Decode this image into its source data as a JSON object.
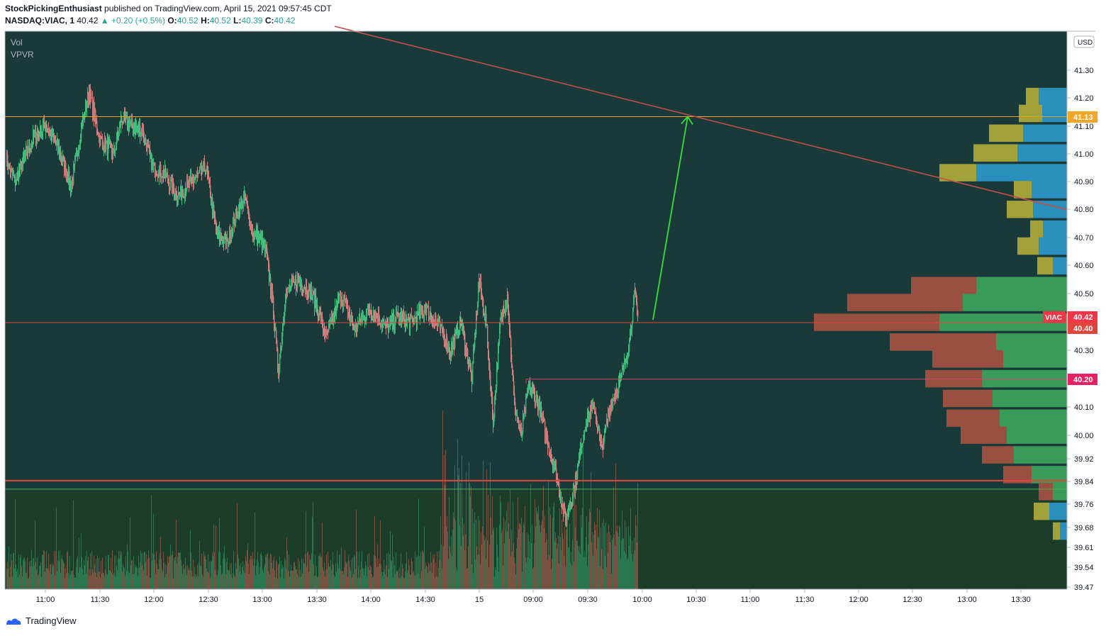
{
  "header": {
    "author": "StockPickingEnthusiast",
    "published": "published on TradingView.com, April 15, 2021 09:57:45 CDT",
    "symbol": "NASDAQ:VIAC, 1",
    "last": "40.42",
    "change": "▲ +0.20 (+0.5%)",
    "o_label": "O:",
    "o_value": "40.52",
    "h_label": "H:",
    "h_value": "40.52",
    "l_label": "L:",
    "l_value": "40.39",
    "c_label": "C:",
    "c_value": "40.42"
  },
  "indicators": [
    "Vol",
    "VPVR"
  ],
  "footer": {
    "brand": "TradingView"
  },
  "colors": {
    "background": "#1a3a3a",
    "volume_zone": "#1b3d2a",
    "candle_up": "#3cb878",
    "candle_down": "#d08080",
    "horizontal_resistance": "#f5a623",
    "support_lines": "#e0443a",
    "trend_line": "#c0504d",
    "arrow": "#38e03a"
  },
  "chart_data": {
    "type": "candlestick",
    "currency": "USD",
    "y_ticks": [
      41.3,
      41.2,
      41.1,
      41.0,
      40.9,
      40.8,
      40.7,
      40.6,
      40.5,
      40.3,
      40.1,
      40.0,
      39.92,
      39.84,
      39.76,
      39.68,
      39.61,
      39.54,
      39.47
    ],
    "x_ticks": [
      "11:00",
      "11:30",
      "12:00",
      "12:30",
      "13:00",
      "13:30",
      "14:00",
      "14:30",
      "15",
      "09:00",
      "09:30",
      "10:00",
      "10:30",
      "11:00",
      "11:30",
      "12:00",
      "12:30",
      "13:00",
      "13:30"
    ],
    "price_tags": [
      {
        "label": "41.13",
        "value": 41.13,
        "color": "#f5a623"
      },
      {
        "label": "40.42",
        "value": 40.42,
        "color": "#f23645",
        "name": "VIAC"
      },
      {
        "label": "40.40",
        "value": 40.4,
        "color": "#e0443a"
      },
      {
        "label": "40.20",
        "value": 40.2,
        "color": "#e91e63"
      }
    ],
    "horizontal_lines": [
      {
        "value": 41.13,
        "color": "#f5a623"
      },
      {
        "value": 40.4,
        "color": "#e0443a"
      },
      {
        "value": 39.84,
        "color": "#e0443a"
      },
      {
        "value": 39.81,
        "color": "#4caf50"
      }
    ],
    "trend_line": {
      "from": {
        "x": "10:40",
        "y": 41.45
      },
      "to": {
        "x": "13:55",
        "y": 40.8
      }
    },
    "arrow": {
      "from": {
        "x": "10:01",
        "y": 40.41
      },
      "to": {
        "x": "10:26",
        "y": 41.13
      }
    },
    "vpvr": [
      {
        "price": 41.2,
        "up": 40,
        "down": 58
      },
      {
        "price": 41.14,
        "up": 35,
        "down": 68
      },
      {
        "price": 41.07,
        "up": 62,
        "down": 110
      },
      {
        "price": 41.0,
        "up": 70,
        "down": 132
      },
      {
        "price": 40.93,
        "up": 128,
        "down": 180
      },
      {
        "price": 40.87,
        "up": 50,
        "down": 75
      },
      {
        "price": 40.8,
        "up": 48,
        "down": 85
      },
      {
        "price": 40.73,
        "up": 34,
        "down": 52
      },
      {
        "price": 40.67,
        "up": 40,
        "down": 70
      },
      {
        "price": 40.6,
        "up": 20,
        "down": 42
      },
      {
        "price": 40.53,
        "up": 128,
        "down": 220
      },
      {
        "price": 40.47,
        "up": 147,
        "down": 310
      },
      {
        "price": 40.4,
        "up": 180,
        "down": 357
      },
      {
        "price": 40.33,
        "up": 100,
        "down": 250
      },
      {
        "price": 40.27,
        "up": 90,
        "down": 190
      },
      {
        "price": 40.2,
        "up": 120,
        "down": 200
      },
      {
        "price": 40.13,
        "up": 105,
        "down": 175
      },
      {
        "price": 40.06,
        "up": 95,
        "down": 170
      },
      {
        "price": 40.0,
        "up": 85,
        "down": 150
      },
      {
        "price": 39.93,
        "up": 75,
        "down": 120
      },
      {
        "price": 39.86,
        "up": 50,
        "down": 90
      },
      {
        "price": 39.8,
        "up": 20,
        "down": 40
      },
      {
        "price": 39.73,
        "up": 25,
        "down": 47
      },
      {
        "price": 39.66,
        "up": 10,
        "down": 20
      }
    ]
  }
}
